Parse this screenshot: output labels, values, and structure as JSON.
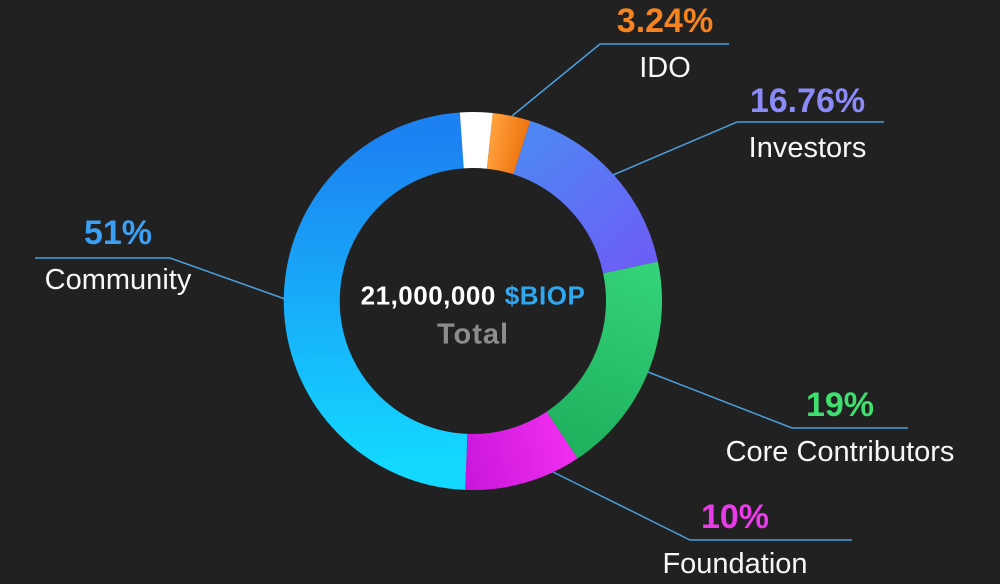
{
  "background_color": "#212121",
  "callout_line_color": "#4a9fdd",
  "chart_data": {
    "type": "pie",
    "subtype": "donut",
    "title": "",
    "legend_position": "callouts",
    "center_label": {
      "amount": "21,000,000",
      "ticker": "$BIOP",
      "ticker_color": "#2fa8f0",
      "caption": "Total",
      "caption_color": "#8c8c8c"
    },
    "segments": [
      {
        "label": "IDO",
        "value": 3.24,
        "pct_label": "3.24%",
        "color_start": "#ffa03c",
        "color_end": "#f07712",
        "label_color": "#f5831f"
      },
      {
        "label": "Investors",
        "value": 16.76,
        "pct_label": "16.76%",
        "color_start": "#4f86f4",
        "color_end": "#6b5ff5",
        "label_color": "#8a8af8"
      },
      {
        "label": "Core Contributors",
        "value": 19,
        "pct_label": "19%",
        "color_start": "#34d178",
        "color_end": "#1fb25f",
        "label_color": "#3fdf70"
      },
      {
        "label": "Foundation",
        "value": 10,
        "pct_label": "10%",
        "color_start": "#ee2dee",
        "color_end": "#cb17dc",
        "label_color": "#e93ce9"
      },
      {
        "label": "Community",
        "value": 51,
        "pct_label": "51%",
        "color_start": "#13d8ff",
        "color_end": "#1c82f2",
        "label_color": "#3aa0f5"
      }
    ]
  }
}
